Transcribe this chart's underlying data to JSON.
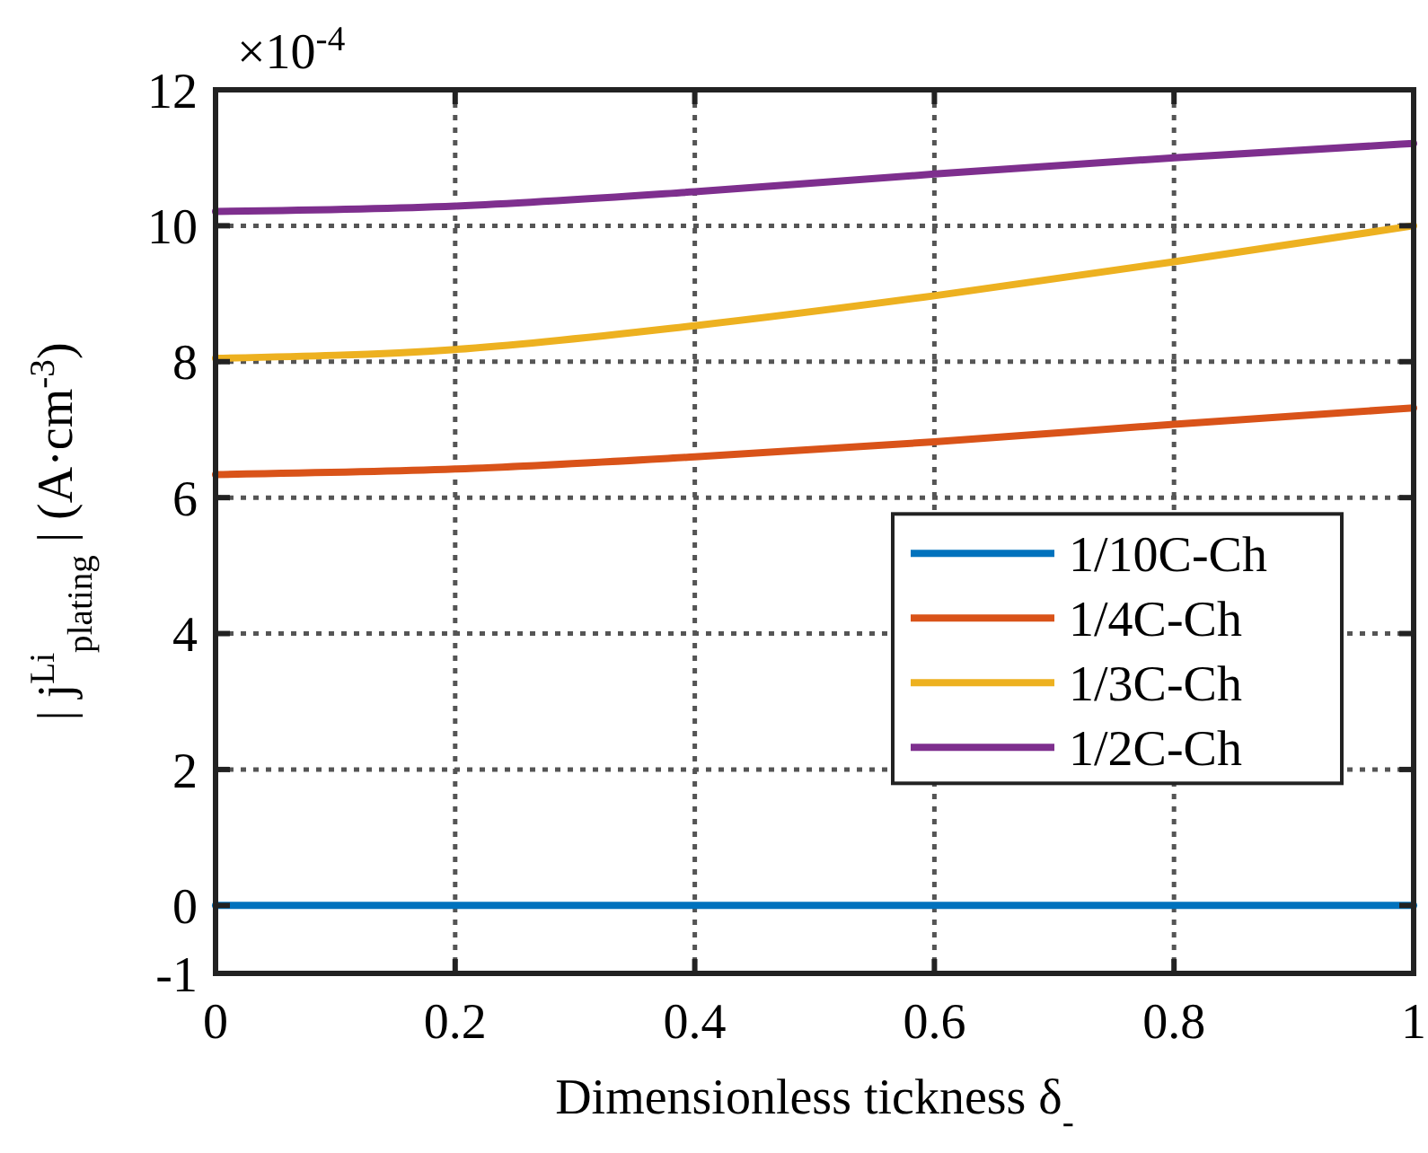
{
  "chart_data": {
    "type": "line",
    "xlabel": "Dimensionless tickness δ$_{-}$",
    "ylabel": "| j$^{Li}$$_{plating}$ | (A·cm$^{-3}$)",
    "annotations": [
      "×10$^{-4}$"
    ],
    "x": [
      0,
      0.2,
      0.4,
      0.6,
      0.8,
      1
    ],
    "series": [
      {
        "name": "1/10C-Ch",
        "color": "#0072bd",
        "values": [
          0,
          0,
          0,
          0,
          0,
          0
        ]
      },
      {
        "name": "1/4C-Ch",
        "color": "#d95319",
        "values": [
          6.34,
          6.42,
          6.6,
          6.82,
          7.08,
          7.32
        ]
      },
      {
        "name": "1/3C-Ch",
        "color": "#edb120",
        "values": [
          8.05,
          8.18,
          8.53,
          8.97,
          9.47,
          10.0
        ]
      },
      {
        "name": "1/2C-Ch",
        "color": "#7e2f8e",
        "values": [
          10.21,
          10.29,
          10.5,
          10.76,
          11.0,
          11.21
        ]
      }
    ],
    "xlim": [
      0,
      1
    ],
    "xticks": [
      0,
      0.2,
      0.4,
      0.6,
      0.8,
      1
    ],
    "ylim": [
      -1,
      12
    ],
    "yticks": [
      -1,
      0,
      2,
      4,
      6,
      8,
      10,
      12
    ],
    "grid": true,
    "legend": "right",
    "line_style": "solid"
  }
}
